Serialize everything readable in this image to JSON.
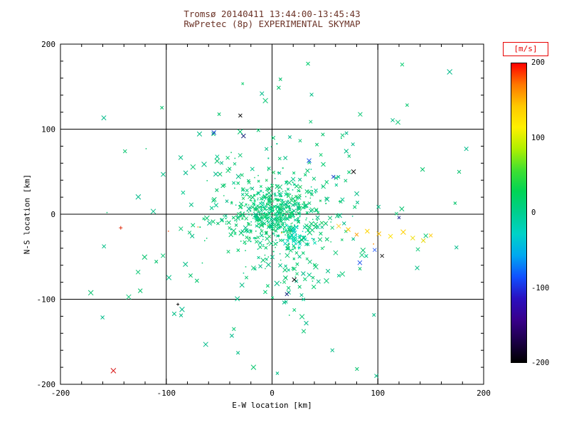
{
  "chart_data": {
    "type": "scatter",
    "title_line1": "Tromsø 20140411 13:44:00-13:45:43",
    "title_line2": "RwPretec (8p) EXPERIMENTAL SKYMAP",
    "title_color": "#6b3226",
    "xlabel": "E-W location [km]",
    "ylabel": "N-S location [km]",
    "xlim": [
      -200,
      200
    ],
    "ylim": [
      -200,
      200
    ],
    "xticks": [
      -200,
      -100,
      0,
      100,
      200
    ],
    "yticks": [
      -200,
      -100,
      0,
      100,
      200
    ],
    "grid_lines": [
      -100,
      0,
      100
    ],
    "grid_on": true,
    "axis_color": "#000000",
    "background_color": "#ffffff",
    "colorbar": {
      "unit_label": "[m/s]",
      "unit_label_color": "#e80000",
      "range": [
        -200,
        200
      ],
      "ticks": [
        200,
        100,
        0,
        -100,
        -200
      ],
      "gradient_top_to_bottom": [
        "#ff0000",
        "#ff7800",
        "#ffc800",
        "#fff000",
        "#b0f000",
        "#40e030",
        "#00d455",
        "#00cf8f",
        "#00d2c8",
        "#00a8f0",
        "#1050ff",
        "#2a10c0",
        "#38008c",
        "#1c0048",
        "#000000"
      ]
    },
    "clusters": [
      {
        "name": "core-dense",
        "count": 420,
        "cx": 2,
        "cy": 2,
        "sx": 14,
        "sy": 16,
        "colors": [
          "#00d873",
          "#00d095",
          "#22cc66",
          "#00c87f"
        ],
        "markers": [
          "dot",
          "x"
        ],
        "marker_weights": [
          0.6,
          0.4
        ],
        "size": [
          2.5,
          5
        ],
        "seed": 101
      },
      {
        "name": "inner-halo",
        "count": 280,
        "cx": 0,
        "cy": -6,
        "sx": 32,
        "sy": 38,
        "colors": [
          "#00cc6e",
          "#00c98c",
          "#1ed077"
        ],
        "markers": [
          "x",
          "dot"
        ],
        "marker_weights": [
          0.6,
          0.4
        ],
        "size": [
          3,
          6
        ],
        "seed": 202
      },
      {
        "name": "outer-halo",
        "count": 150,
        "cx": 4,
        "cy": -8,
        "sx": 60,
        "sy": 66,
        "colors": [
          "#00c46a",
          "#00bd85",
          "#12c979"
        ],
        "markers": [
          "x"
        ],
        "marker_weights": [
          1
        ],
        "size": [
          4,
          7
        ],
        "seed": 303
      },
      {
        "name": "teal-blob",
        "count": 60,
        "cx": 22,
        "cy": -27,
        "sx": 6,
        "sy": 6,
        "colors": [
          "#00dcb4",
          "#00d2c0",
          "#00e0a8"
        ],
        "markers": [
          "x",
          "dot"
        ],
        "marker_weights": [
          0.5,
          0.5
        ],
        "size": [
          3,
          5
        ],
        "seed": 404
      },
      {
        "name": "sparse-far",
        "count": 55,
        "cx": 0,
        "cy": -10,
        "sx": 105,
        "sy": 95,
        "colors": [
          "#00c06a",
          "#00ba8a"
        ],
        "markers": [
          "x"
        ],
        "marker_weights": [
          1
        ],
        "size": [
          4,
          7
        ],
        "seed": 505
      }
    ],
    "points": [
      {
        "x": 63,
        "y": -14,
        "c": "#ffd84a",
        "m": "x",
        "s": 6
      },
      {
        "x": 72,
        "y": -18,
        "c": "#ffc400",
        "m": "x",
        "s": 6
      },
      {
        "x": 80,
        "y": -24,
        "c": "#ff9e00",
        "m": "x",
        "s": 5
      },
      {
        "x": 90,
        "y": -20,
        "c": "#ffd400",
        "m": "x",
        "s": 6
      },
      {
        "x": 101,
        "y": -23,
        "c": "#ffc000",
        "m": "x",
        "s": 6
      },
      {
        "x": 112,
        "y": -26,
        "c": "#ffe100",
        "m": "x",
        "s": 6
      },
      {
        "x": 124,
        "y": -21,
        "c": "#ffd000",
        "m": "x",
        "s": 7
      },
      {
        "x": 133,
        "y": -28,
        "c": "#f2e11a",
        "m": "x",
        "s": 6
      },
      {
        "x": 143,
        "y": -31,
        "c": "#e6d800",
        "m": "x",
        "s": 6
      },
      {
        "x": 150,
        "y": -25,
        "c": "#ffcf20",
        "m": "x",
        "s": 5
      },
      {
        "x": 96,
        "y": -35,
        "c": "#ff8c00",
        "m": "dot",
        "s": 4
      },
      {
        "x": -143,
        "y": -16,
        "c": "#e03010",
        "m": "plus",
        "s": 5
      },
      {
        "x": -98,
        "y": -20,
        "c": "#ff5a1e",
        "m": "dot",
        "s": 4
      },
      {
        "x": -70,
        "y": -15,
        "c": "#ff9a20",
        "m": "dot",
        "s": 4
      },
      {
        "x": -55,
        "y": 96,
        "c": "#1a3fd0",
        "m": "x",
        "s": 6
      },
      {
        "x": -27,
        "y": 92,
        "c": "#101c78",
        "m": "x",
        "s": 6
      },
      {
        "x": 35,
        "y": 63,
        "c": "#2a5cee",
        "m": "x",
        "s": 6
      },
      {
        "x": 58,
        "y": 44,
        "c": "#1a3fd0",
        "m": "x",
        "s": 5
      },
      {
        "x": 83,
        "y": -57,
        "c": "#2a5cee",
        "m": "x",
        "s": 6
      },
      {
        "x": 14,
        "y": -94,
        "c": "#101c78",
        "m": "x",
        "s": 5
      },
      {
        "x": 97,
        "y": -42,
        "c": "#3a6cff",
        "m": "x",
        "s": 5
      },
      {
        "x": 120,
        "y": -4,
        "c": "#30309a",
        "m": "x",
        "s": 4
      },
      {
        "x": 77,
        "y": 50,
        "c": "#151515",
        "m": "x",
        "s": 6
      },
      {
        "x": -30,
        "y": 116,
        "c": "#151515",
        "m": "x",
        "s": 5
      },
      {
        "x": 21,
        "y": -77,
        "c": "#111111",
        "m": "x",
        "s": 6
      },
      {
        "x": -89,
        "y": -106,
        "c": "#101010",
        "m": "plus",
        "s": 4
      },
      {
        "x": 104,
        "y": -49,
        "c": "#202020",
        "m": "x",
        "s": 5
      },
      {
        "x": -150,
        "y": -184,
        "c": "#d81414",
        "m": "x",
        "s": 7
      },
      {
        "x": -4,
        "y": -13,
        "c": "#ffd44a",
        "m": "dot",
        "s": 4
      },
      {
        "x": 9,
        "y": -22,
        "c": "#ffb000",
        "m": "dot",
        "s": 4
      },
      {
        "x": 34,
        "y": 177,
        "c": "#00cc6e",
        "m": "x",
        "s": 5
      },
      {
        "x": 123,
        "y": 176,
        "c": "#00cc6e",
        "m": "x",
        "s": 5
      },
      {
        "x": -139,
        "y": 74,
        "c": "#00c46a",
        "m": "x",
        "s": 5
      },
      {
        "x": -156,
        "y": 2,
        "c": "#00c46a",
        "m": "dot",
        "s": 4
      },
      {
        "x": 173,
        "y": 13,
        "c": "#00c46a",
        "m": "x",
        "s": 4
      },
      {
        "x": 57,
        "y": -160,
        "c": "#00bd85",
        "m": "x",
        "s": 5
      },
      {
        "x": 5,
        "y": -187,
        "c": "#00bd85",
        "m": "x",
        "s": 4
      },
      {
        "x": -119,
        "y": 77,
        "c": "#00c46a",
        "m": "dot",
        "s": 4
      }
    ]
  }
}
